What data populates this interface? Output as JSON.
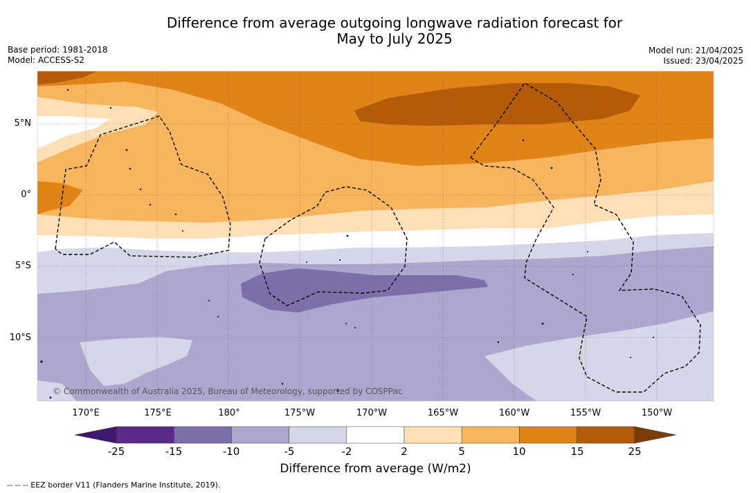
{
  "title_line1": "Difference from average outgoing longwave radiation forecast for",
  "title_line2": "May to July 2025",
  "base_period": "Base period: 1981-2018",
  "model": "Model: ACCESS-S2",
  "model_run": "Model run: 21/04/2025",
  "issued": "Issued: 23/04/2025",
  "copyright": "© Commonwealth of Australia 2025, Bureau of Meteorology, supported by COSPPac",
  "lon_labels": [
    "170°E",
    "175°E",
    "180°",
    "175°W",
    "170°W",
    "165°W",
    "160°W",
    "155°W",
    "150°W"
  ],
  "lat_labels": [
    "5°N",
    "0°",
    "5°S",
    "10°S"
  ],
  "colorbar": {
    "ticks": [
      "-25",
      "-15",
      "-10",
      "-5",
      "-2",
      "2",
      "5",
      "10",
      "15",
      "25"
    ],
    "colors": [
      "#3f1a6e",
      "#5b2a8b",
      "#7d6faa",
      "#ada7cf",
      "#d6d6e9",
      "#ffffff",
      "#fde0b5",
      "#f9b45e",
      "#e08418",
      "#b45b0a",
      "#7a3c08"
    ],
    "label": "Difference from average (W/m2)"
  },
  "footer": "--  --  -- EEZ border V11 (Flanders Marine Institute, 2019)."
}
